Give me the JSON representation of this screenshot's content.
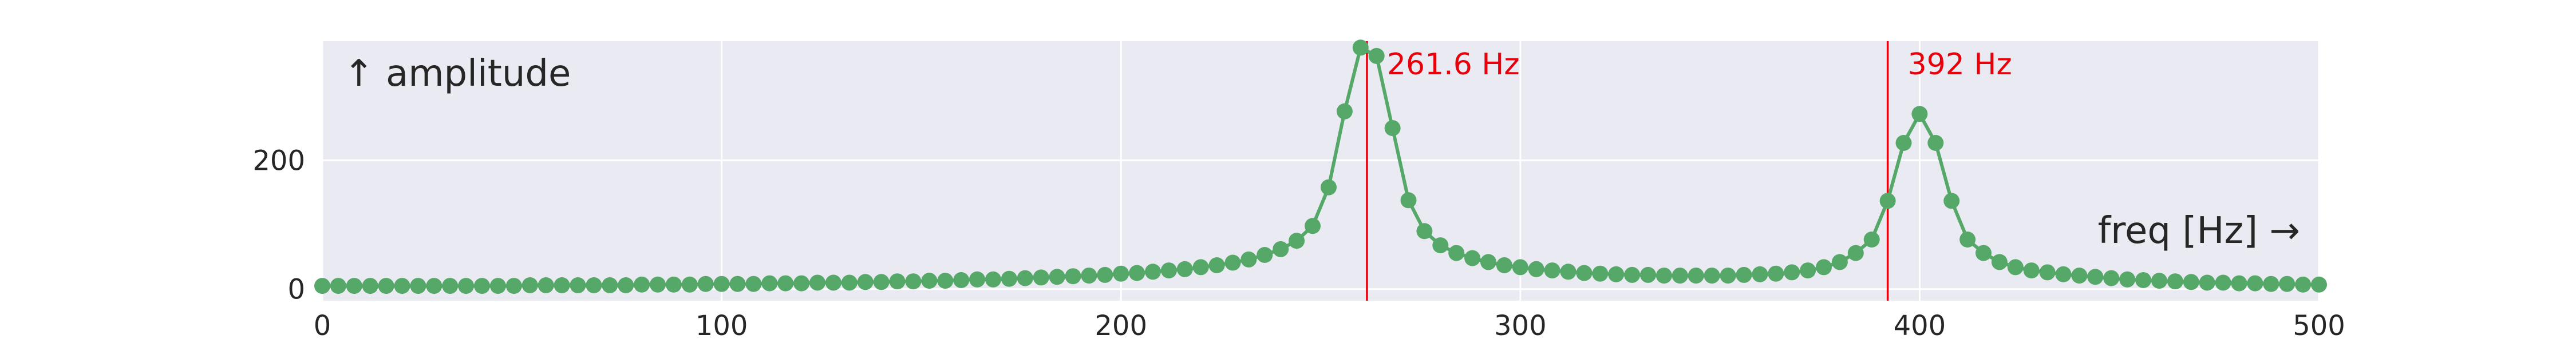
{
  "chart_data": {
    "type": "line",
    "title": "",
    "xlabel": "",
    "ylabel": "",
    "annotations": {
      "y_axis_note": "↑ amplitude",
      "x_axis_note": "freq [Hz] →"
    },
    "xlim": [
      0,
      500
    ],
    "ylim": [
      -18,
      385
    ],
    "x_ticks": [
      0,
      100,
      200,
      300,
      400,
      500
    ],
    "x_tick_labels": [
      "0",
      "100",
      "200",
      "300",
      "400",
      "500"
    ],
    "y_ticks": [
      0,
      200
    ],
    "y_tick_labels": [
      "0",
      "200"
    ],
    "grid": true,
    "legend": "none",
    "colors": {
      "plot_background": "#eaeaf2",
      "grid": "#ffffff",
      "series": "#55a868",
      "marker_line": "#e8000b",
      "marker_text": "#e8000b",
      "text": "#262626"
    },
    "vertical_markers": [
      {
        "x": 261.6,
        "label": "261.6 Hz"
      },
      {
        "x": 392,
        "label": "392 Hz"
      }
    ],
    "series": [
      {
        "x": [
          0,
          4,
          8,
          12,
          16,
          20,
          24,
          28,
          32,
          36,
          40,
          44,
          48,
          52,
          56,
          60,
          64,
          68,
          72,
          76,
          80,
          84,
          88,
          92,
          96,
          100,
          104,
          108,
          112,
          116,
          120,
          124,
          128,
          132,
          136,
          140,
          144,
          148,
          152,
          156,
          160,
          164,
          168,
          172,
          176,
          180,
          184,
          188,
          192,
          196,
          200,
          204,
          208,
          212,
          216,
          220,
          224,
          228,
          232,
          236,
          240,
          244,
          248,
          252,
          256,
          260,
          264,
          268,
          272,
          276,
          280,
          284,
          288,
          292,
          296,
          300,
          304,
          308,
          312,
          316,
          320,
          324,
          328,
          332,
          336,
          340,
          344,
          348,
          352,
          356,
          360,
          364,
          368,
          372,
          376,
          380,
          384,
          388,
          392,
          396,
          400,
          404,
          408,
          412,
          416,
          420,
          424,
          428,
          432,
          436,
          440,
          444,
          448,
          452,
          456,
          460,
          464,
          468,
          472,
          476,
          480,
          484,
          488,
          492,
          496,
          500
        ],
        "values": [
          5,
          5,
          5,
          5,
          5,
          5,
          5,
          5,
          5,
          5,
          5,
          5,
          5,
          6,
          6,
          6,
          6,
          6,
          6,
          6,
          7,
          7,
          7,
          7,
          8,
          8,
          8,
          8,
          9,
          9,
          9,
          10,
          10,
          10,
          11,
          11,
          12,
          12,
          13,
          13,
          14,
          15,
          15,
          16,
          17,
          18,
          19,
          20,
          21,
          22,
          24,
          25,
          27,
          29,
          31,
          34,
          37,
          41,
          46,
          53,
          62,
          75,
          98,
          158,
          276,
          375,
          362,
          250,
          138,
          90,
          68,
          56,
          48,
          42,
          37,
          34,
          31,
          29,
          27,
          25,
          24,
          23,
          22,
          22,
          21,
          21,
          21,
          21,
          21,
          22,
          23,
          24,
          26,
          29,
          34,
          42,
          56,
          77,
          137,
          227,
          272,
          227,
          137,
          77,
          56,
          42,
          34,
          29,
          26,
          23,
          21,
          19,
          17,
          15,
          14,
          13,
          12,
          11,
          10,
          10,
          9,
          9,
          8,
          8,
          7,
          7
        ]
      }
    ]
  }
}
